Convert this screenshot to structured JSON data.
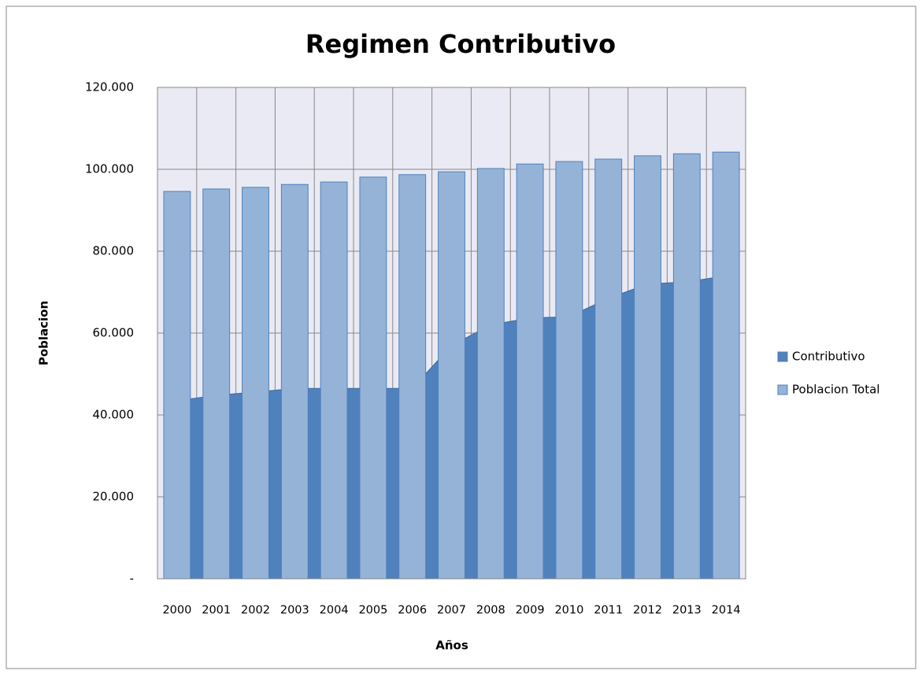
{
  "chart_data": {
    "type": "bar",
    "title": "Regimen Contributivo",
    "x_label": "Años",
    "y_label": "Poblacion",
    "categories": [
      "2000",
      "2001",
      "2002",
      "2003",
      "2004",
      "2005",
      "2006",
      "2007",
      "2008",
      "2009",
      "2010",
      "2011",
      "2012",
      "2013",
      "2014"
    ],
    "series": [
      {
        "name": "Contributivo",
        "type": "area",
        "color": "#4f81bd",
        "values": [
          43500,
          44800,
          45600,
          46500,
          46500,
          46500,
          46500,
          57000,
          62000,
          63700,
          64000,
          68500,
          72000,
          72500,
          74000
        ]
      },
      {
        "name": "Poblacion Total",
        "type": "bar",
        "color": "#95b3d7",
        "values": [
          94600,
          95200,
          95600,
          96300,
          96900,
          98100,
          98700,
          99400,
          100200,
          101300,
          101900,
          102500,
          103300,
          103800,
          104200
        ]
      }
    ],
    "ylim": [
      0,
      120000
    ],
    "yticks": [
      {
        "value": 0,
        "label": "-"
      },
      {
        "value": 20000,
        "label": "20.000"
      },
      {
        "value": 40000,
        "label": "40.000"
      },
      {
        "value": 60000,
        "label": "60.000"
      },
      {
        "value": 80000,
        "label": "80.000"
      },
      {
        "value": 100000,
        "label": "100.000"
      },
      {
        "value": 120000,
        "label": "120.000"
      }
    ],
    "grid": true,
    "legend": "right"
  }
}
